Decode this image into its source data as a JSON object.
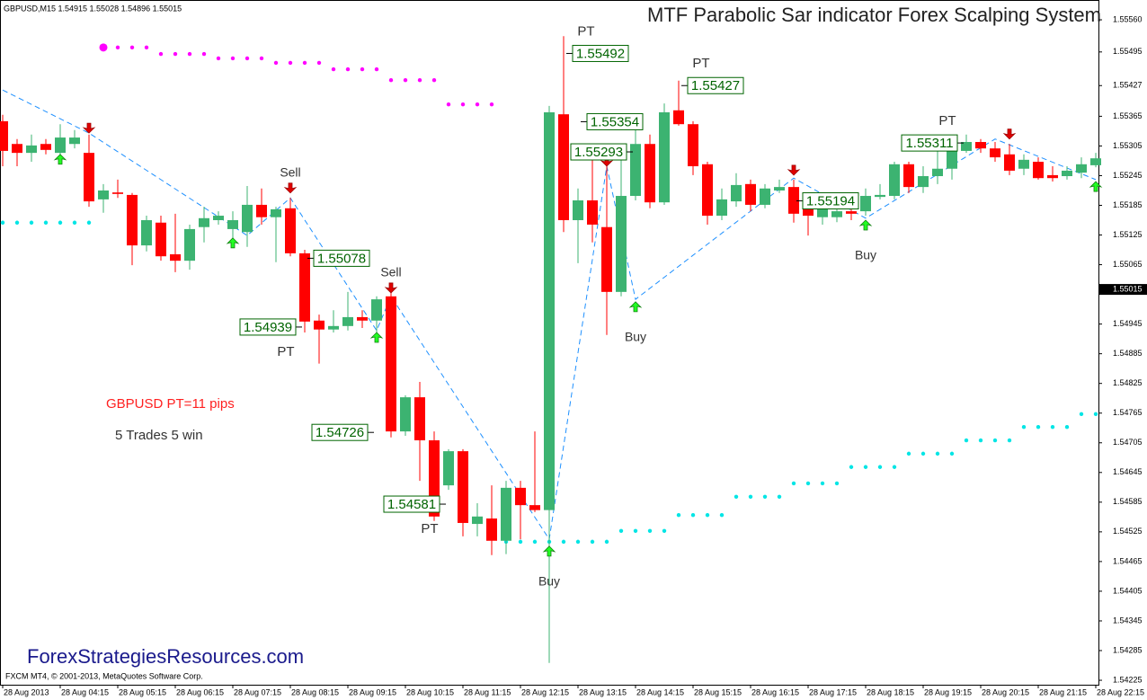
{
  "chart_data": {
    "type": "candlestick",
    "header": "GBPUSD,M15  1.54915 1.55028 1.54896 1.55015",
    "title": "MTF Parabolic Sar indicator Forex Scalping System",
    "footer": "FXCM MT4, © 2001-2013, MetaQuotes Software Corp.",
    "watermark": "ForexStrategiesResources.com",
    "notes": [
      {
        "text": "GBPUSD PT=11 pips",
        "color": "#ff2020"
      },
      {
        "text": "5 Trades 5 win",
        "color": "#333333"
      }
    ],
    "current_price": 1.55015,
    "up_color": "#3cb371",
    "down_color": "#ff0000",
    "grid": false,
    "ylim": [
      1.54216,
      1.556
    ],
    "yticks": [
      {
        "value": 1.5556,
        "label": "1.55560"
      },
      1.55495,
      1.55427,
      1.55365,
      1.55305,
      1.55245,
      1.55185,
      1.55125,
      1.55065,
      1.54945,
      1.54885,
      1.54825,
      1.54765,
      1.54705,
      1.54645,
      1.54585,
      1.54525,
      1.54465,
      1.54405,
      1.54345,
      1.54285,
      1.54225
    ],
    "categories": [
      "28 Aug 2013",
      null,
      null,
      null,
      "28 Aug 04:15",
      null,
      null,
      null,
      "28 Aug 05:15",
      null,
      null,
      null,
      "28 Aug 06:15",
      null,
      null,
      null,
      "28 Aug 07:15",
      null,
      null,
      null,
      "28 Aug 08:15",
      null,
      null,
      null,
      "28 Aug 09:15",
      null,
      null,
      null,
      "28 Aug 10:15",
      null,
      null,
      null,
      "28 Aug 11:15",
      null,
      null,
      null,
      "28 Aug 12:15",
      null,
      null,
      null,
      "28 Aug 13:15",
      null,
      null,
      null,
      "28 Aug 14:15",
      null,
      null,
      null,
      "28 Aug 15:15",
      null,
      null,
      null,
      "28 Aug 16:15",
      null,
      null,
      null,
      "28 Aug 17:15",
      null,
      null,
      null,
      "28 Aug 18:15",
      null,
      null,
      null,
      "28 Aug 19:15",
      null,
      null,
      null,
      "28 Aug 20:15",
      null,
      null,
      null,
      "28 Aug 21:15",
      null,
      null,
      null,
      "28 Aug 22:15"
    ],
    "open": [
      1.55355,
      1.55309,
      1.55291,
      1.55309,
      1.55291,
      1.55309,
      1.55291,
      1.55197,
      1.55211,
      1.55206,
      1.55104,
      1.5515,
      1.55086,
      1.55073,
      1.55141,
      1.55155,
      1.55137,
      1.55131,
      1.55186,
      1.55161,
      1.55179,
      1.55088,
      1.54952,
      1.54934,
      1.54941,
      1.54959,
      1.54952,
      1.55001,
      1.54728,
      1.54797,
      1.5471,
      1.54619,
      1.54688,
      1.54541,
      1.54552,
      1.54507,
      1.54614,
      1.54579,
      1.54569,
      1.55369,
      1.55155,
      1.55195,
      1.55141,
      1.5501,
      1.55204,
      1.55309,
      1.55191,
      1.55377,
      1.55349,
      1.55268,
      1.55164,
      1.55193,
      1.55228,
      1.55186,
      1.55215,
      1.55222,
      1.55191,
      1.55161,
      1.55161,
      1.55173,
      1.55173,
      1.55202,
      1.55204,
      1.55268,
      1.55222,
      1.55244,
      1.55259,
      1.55295,
      1.55313,
      1.553,
      1.55288,
      1.55259,
      1.55273,
      1.55246,
      1.55244,
      1.55251,
      1.55266
    ],
    "high": [
      1.55368,
      1.55319,
      1.55328,
      1.55319,
      1.55349,
      1.55337,
      1.55328,
      1.55228,
      1.55237,
      1.5521,
      1.55164,
      1.55164,
      1.55168,
      1.55146,
      1.55182,
      1.55173,
      1.55173,
      1.55224,
      1.55219,
      1.55182,
      1.552,
      1.55095,
      1.54964,
      1.54973,
      1.5501,
      1.54973,
      1.55001,
      1.55015,
      1.54801,
      1.54828,
      1.54728,
      1.54692,
      1.54692,
      1.54583,
      1.54619,
      1.54628,
      1.54628,
      1.54728,
      1.55386,
      1.55527,
      1.55219,
      1.55282,
      1.55291,
      1.55309,
      1.55346,
      1.55328,
      1.55391,
      1.55437,
      1.55355,
      1.55273,
      1.55219,
      1.5525,
      1.55237,
      1.55228,
      1.55237,
      1.55237,
      1.5521,
      1.552,
      1.55197,
      1.55186,
      1.55219,
      1.55228,
      1.55273,
      1.55273,
      1.55264,
      1.553,
      1.55319,
      1.55328,
      1.55319,
      1.55313,
      1.55309,
      1.55288,
      1.55282,
      1.55264,
      1.55264,
      1.55282,
      1.55291
    ],
    "low": [
      1.55264,
      1.55264,
      1.55273,
      1.55288,
      1.55277,
      1.553,
      1.55182,
      1.5517,
      1.552,
      1.55064,
      1.55092,
      1.55073,
      1.5505,
      1.55055,
      1.5511,
      1.55146,
      1.55119,
      1.55101,
      1.55146,
      1.5507,
      1.55082,
      1.54928,
      1.54865,
      1.54928,
      1.54932,
      1.54937,
      1.5491,
      1.54716,
      1.54719,
      1.54628,
      1.54547,
      1.5461,
      1.54516,
      1.54516,
      1.54478,
      1.5448,
      1.5451,
      1.54565,
      1.5426,
      1.55131,
      1.55068,
      1.5511,
      1.54923,
      1.55001,
      1.55195,
      1.55179,
      1.55186,
      1.55346,
      1.55246,
      1.55146,
      1.55155,
      1.55182,
      1.55173,
      1.55179,
      1.5521,
      1.5515,
      1.55124,
      1.55146,
      1.55151,
      1.55155,
      1.55164,
      1.55197,
      1.55197,
      1.5521,
      1.5521,
      1.55228,
      1.55237,
      1.55291,
      1.55291,
      1.55273,
      1.55246,
      1.55246,
      1.55237,
      1.55233,
      1.55237,
      1.5524,
      1.55262
    ],
    "close": [
      1.55295,
      1.55291,
      1.55306,
      1.55297,
      1.55322,
      1.55322,
      1.55193,
      1.55215,
      1.55208,
      1.55104,
      1.55155,
      1.55082,
      1.55073,
      1.55137,
      1.55159,
      1.55164,
      1.55155,
      1.55186,
      1.55161,
      1.55177,
      1.55088,
      1.5495,
      1.54934,
      1.54941,
      1.54959,
      1.54952,
      1.54995,
      1.54728,
      1.54797,
      1.5471,
      1.54556,
      1.54688,
      1.54543,
      1.54556,
      1.54507,
      1.54614,
      1.54579,
      1.54569,
      1.55373,
      1.55155,
      1.55195,
      1.55146,
      1.5501,
      1.55204,
      1.55309,
      1.55191,
      1.55373,
      1.55349,
      1.55264,
      1.55164,
      1.55197,
      1.55226,
      1.55186,
      1.55219,
      1.55222,
      1.55168,
      1.55164,
      1.5519,
      1.55173,
      1.55168,
      1.55204,
      1.55206,
      1.55268,
      1.55222,
      1.55244,
      1.55259,
      1.55297,
      1.55313,
      1.553,
      1.55282,
      1.55255,
      1.55277,
      1.5524,
      1.5524,
      1.55255,
      1.55268,
      1.5528
    ],
    "dots": [
      {
        "color": "#ff00ff",
        "values": [
          null,
          null,
          null,
          null,
          null,
          null,
          null,
          1.55504,
          1.55504,
          1.55504,
          1.55504,
          1.55491,
          1.55491,
          1.55491,
          1.55491,
          1.55482,
          1.55482,
          1.55482,
          1.55482,
          1.55473,
          1.55473,
          1.55473,
          1.55473,
          1.5546,
          1.5546,
          1.5546,
          1.5546,
          1.55438,
          1.55438,
          1.55438,
          1.55438,
          1.55389,
          1.55389,
          1.55389,
          1.55389,
          null,
          null,
          null,
          null,
          null,
          null,
          null,
          null,
          null,
          null,
          null,
          null,
          null,
          null,
          null,
          null,
          null,
          null,
          null,
          null,
          null,
          null,
          null,
          null,
          null,
          null,
          null,
          null,
          null,
          null,
          null,
          null,
          null,
          null,
          null,
          null,
          null,
          null,
          null,
          null,
          null,
          null
        ]
      },
      {
        "color": "#00e5e5",
        "values": [
          1.5515,
          1.5515,
          1.5515,
          1.5515,
          1.5515,
          1.5515,
          1.5515,
          null,
          null,
          null,
          null,
          null,
          null,
          null,
          null,
          null,
          null,
          null,
          null,
          null,
          null,
          null,
          null,
          null,
          null,
          null,
          null,
          null,
          null,
          null,
          null,
          null,
          null,
          null,
          null,
          1.54505,
          1.54505,
          1.54505,
          1.54505,
          1.54505,
          1.54505,
          1.54505,
          1.54505,
          1.54527,
          1.54527,
          1.54527,
          1.54527,
          1.54559,
          1.54559,
          1.54559,
          1.54559,
          1.54596,
          1.54596,
          1.54596,
          1.54596,
          1.54623,
          1.54623,
          1.54623,
          1.54623,
          1.54656,
          1.54656,
          1.54656,
          1.54656,
          1.54683,
          1.54683,
          1.54683,
          1.54683,
          1.5471,
          1.5471,
          1.5471,
          1.5471,
          1.54737,
          1.54737,
          1.54737,
          1.54737,
          1.54763,
          1.54763
        ]
      }
    ],
    "zigzag": {
      "color": "#1e90ff",
      "x": [
        0,
        6,
        17,
        20,
        26,
        27,
        38,
        42,
        44,
        55,
        60,
        69,
        76
      ],
      "values": [
        1.55418,
        1.55331,
        1.55124,
        1.552,
        1.54932,
        1.55001,
        1.5451,
        1.55264,
        1.54995,
        1.5524,
        1.55159,
        1.55319,
        1.55237
      ]
    },
    "arrows": [
      {
        "index": 4,
        "value": 1.55288,
        "direction": "up"
      },
      {
        "index": 6,
        "value": 1.55331,
        "direction": "down"
      },
      {
        "index": 16,
        "value": 1.55119,
        "direction": "up"
      },
      {
        "index": 20,
        "value": 1.5521,
        "direction": "down",
        "label": "Sell"
      },
      {
        "index": 26,
        "value": 1.54928,
        "direction": "up"
      },
      {
        "index": 27,
        "value": 1.55008,
        "direction": "down",
        "label": "Sell"
      },
      {
        "index": 38,
        "value": 1.54496,
        "direction": "up",
        "label": "Buy"
      },
      {
        "index": 42,
        "value": 1.55264,
        "direction": "down"
      },
      {
        "index": 44,
        "value": 1.5499,
        "direction": "up",
        "label": "Buy"
      },
      {
        "index": 55,
        "value": 1.55246,
        "direction": "down"
      },
      {
        "index": 60,
        "value": 1.55155,
        "direction": "up",
        "label": "Buy"
      },
      {
        "index": 70,
        "value": 1.55319,
        "direction": "down"
      },
      {
        "index": 76,
        "value": 1.55233,
        "direction": "up"
      }
    ],
    "price_labels": [
      {
        "value": 1.55492,
        "index": 39,
        "side": "right",
        "note": "PT",
        "note_pos": "above"
      },
      {
        "value": 1.55354,
        "index": 40,
        "side": "right"
      },
      {
        "value": 1.55293,
        "index": 44,
        "side": "left"
      },
      {
        "value": 1.55427,
        "index": 47,
        "side": "right",
        "note": "PT",
        "note_pos": "above"
      },
      {
        "value": 1.55078,
        "index": 21,
        "side": "right"
      },
      {
        "value": 1.54939,
        "index": 21,
        "side": "left",
        "note": "PT",
        "note_pos": "below"
      },
      {
        "value": 1.54726,
        "index": 26,
        "side": "left"
      },
      {
        "value": 1.54581,
        "index": 31,
        "side": "left",
        "note": "PT",
        "note_pos": "below"
      },
      {
        "value": 1.55194,
        "index": 55,
        "side": "right"
      },
      {
        "value": 1.55311,
        "index": 67,
        "side": "left",
        "note": "PT",
        "note_pos": "above"
      }
    ]
  }
}
